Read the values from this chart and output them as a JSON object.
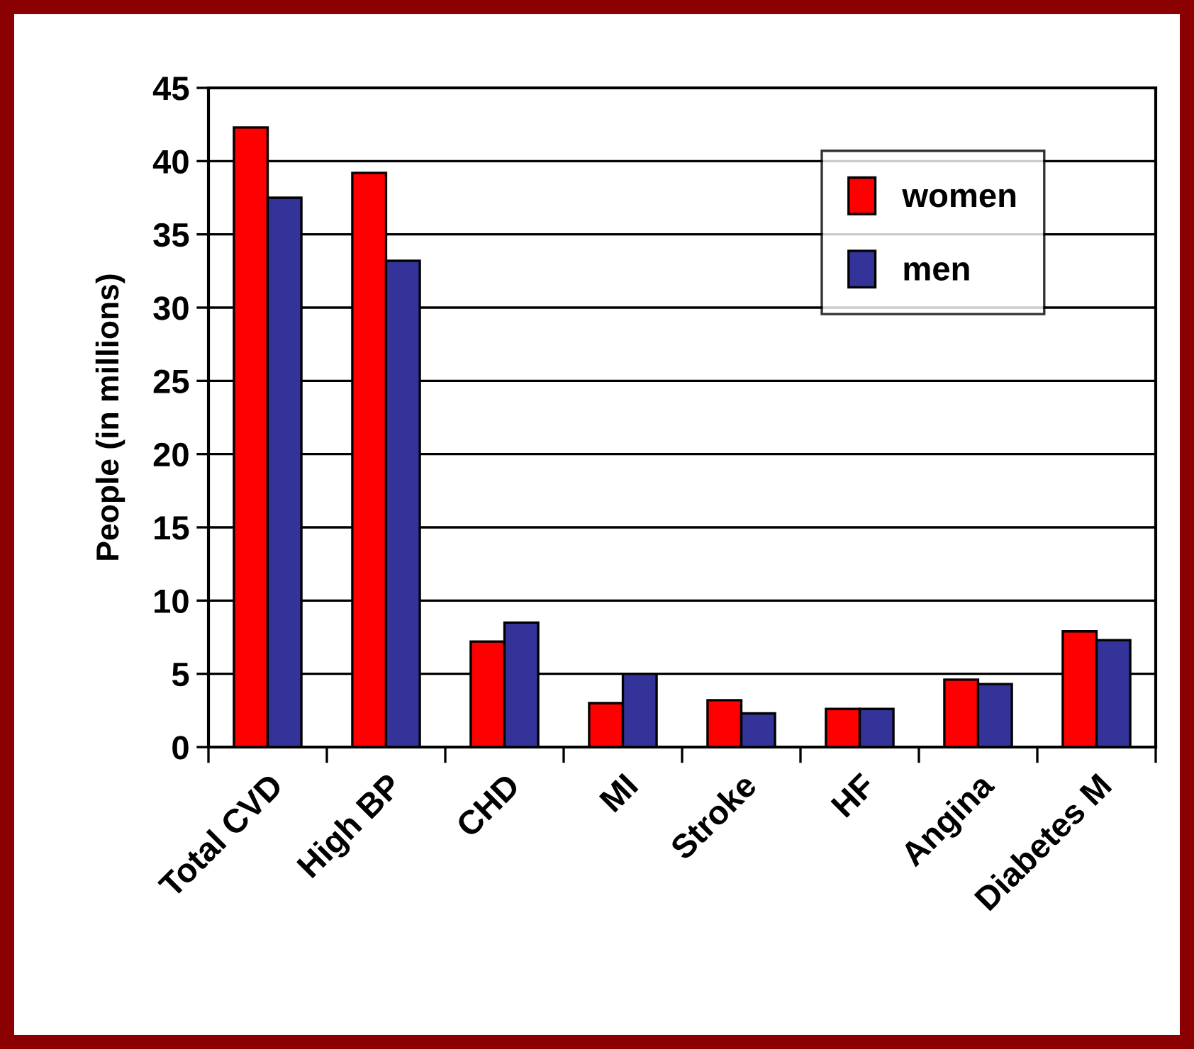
{
  "chart_data": {
    "type": "bar",
    "ylabel": "People (in millions)",
    "categories": [
      "Total CVD",
      "High BP",
      "CHD",
      "MI",
      "Stroke",
      "HF",
      "Angina",
      "Diabetes M"
    ],
    "series": [
      {
        "name": "women",
        "color": "#ff0000",
        "values": [
          42.3,
          39.2,
          7.2,
          3.0,
          3.2,
          2.6,
          4.6,
          7.9
        ]
      },
      {
        "name": "men",
        "color": "#333399",
        "values": [
          37.5,
          33.2,
          8.5,
          5.0,
          2.3,
          2.6,
          4.3,
          7.3
        ]
      }
    ],
    "ylim": [
      0,
      45
    ],
    "yticks": [
      0,
      5,
      10,
      15,
      20,
      25,
      30,
      35,
      40,
      45
    ],
    "grid": "y",
    "legend": "top right"
  }
}
